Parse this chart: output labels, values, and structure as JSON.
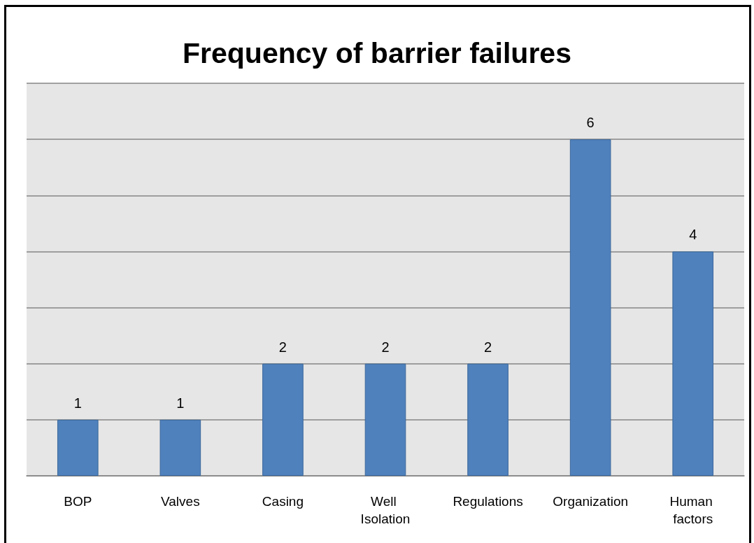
{
  "chart_data": {
    "type": "bar",
    "title": "Frequency of barrier failures",
    "categories": [
      "BOP",
      "Valves",
      "Casing",
      "Well Isolation",
      "Regulations",
      "Organization",
      "Human factors"
    ],
    "values": [
      1,
      1,
      2,
      2,
      2,
      6,
      4
    ],
    "color": "#4f81bd",
    "ylim": [
      0,
      7
    ],
    "yticks": [
      0,
      1,
      2,
      3,
      4,
      5,
      6,
      7
    ],
    "grid": "y",
    "tick_labels": "x",
    "data_labels": true
  }
}
